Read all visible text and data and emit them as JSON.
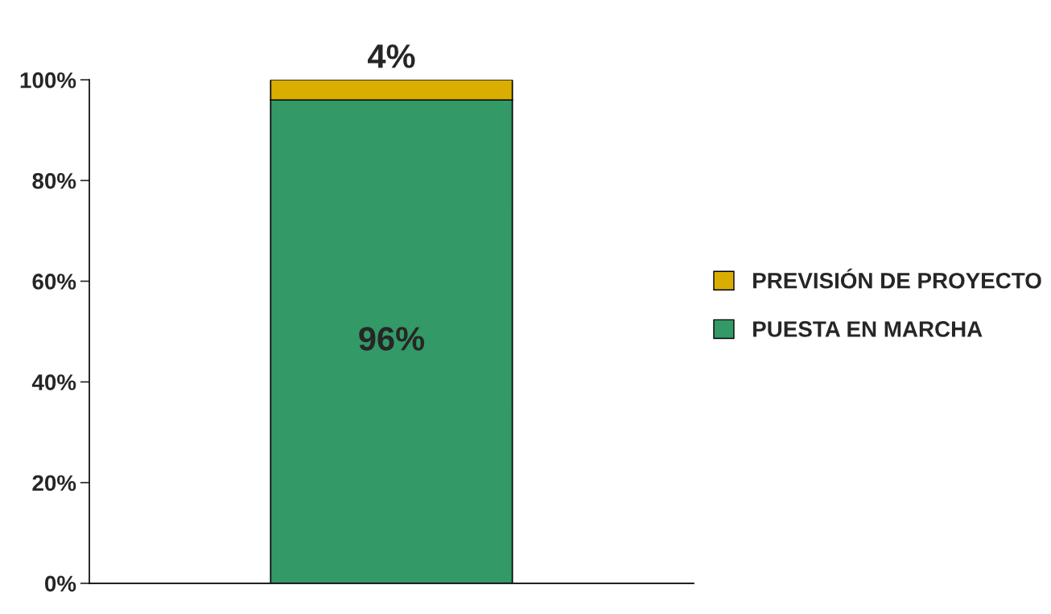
{
  "chart_data": {
    "type": "bar",
    "stacked": true,
    "categories": [
      null
    ],
    "series": [
      {
        "name": "PUESTA EN MARCHA",
        "color": "#339966",
        "values": [
          96
        ],
        "value_labels": [
          "96%"
        ]
      },
      {
        "name": "PREVISIÓN DE PROYECTO",
        "color": "#d9ae00",
        "values": [
          4
        ],
        "value_labels": [
          "4%"
        ]
      }
    ],
    "ylim": [
      0,
      100
    ],
    "yticks": [
      {
        "value": 0,
        "label": "0%"
      },
      {
        "value": 20,
        "label": "20%"
      },
      {
        "value": 40,
        "label": "40%"
      },
      {
        "value": 60,
        "label": "60%"
      },
      {
        "value": 80,
        "label": "80%"
      },
      {
        "value": 100,
        "label": "100%"
      }
    ],
    "grid": false,
    "legend": "right"
  }
}
